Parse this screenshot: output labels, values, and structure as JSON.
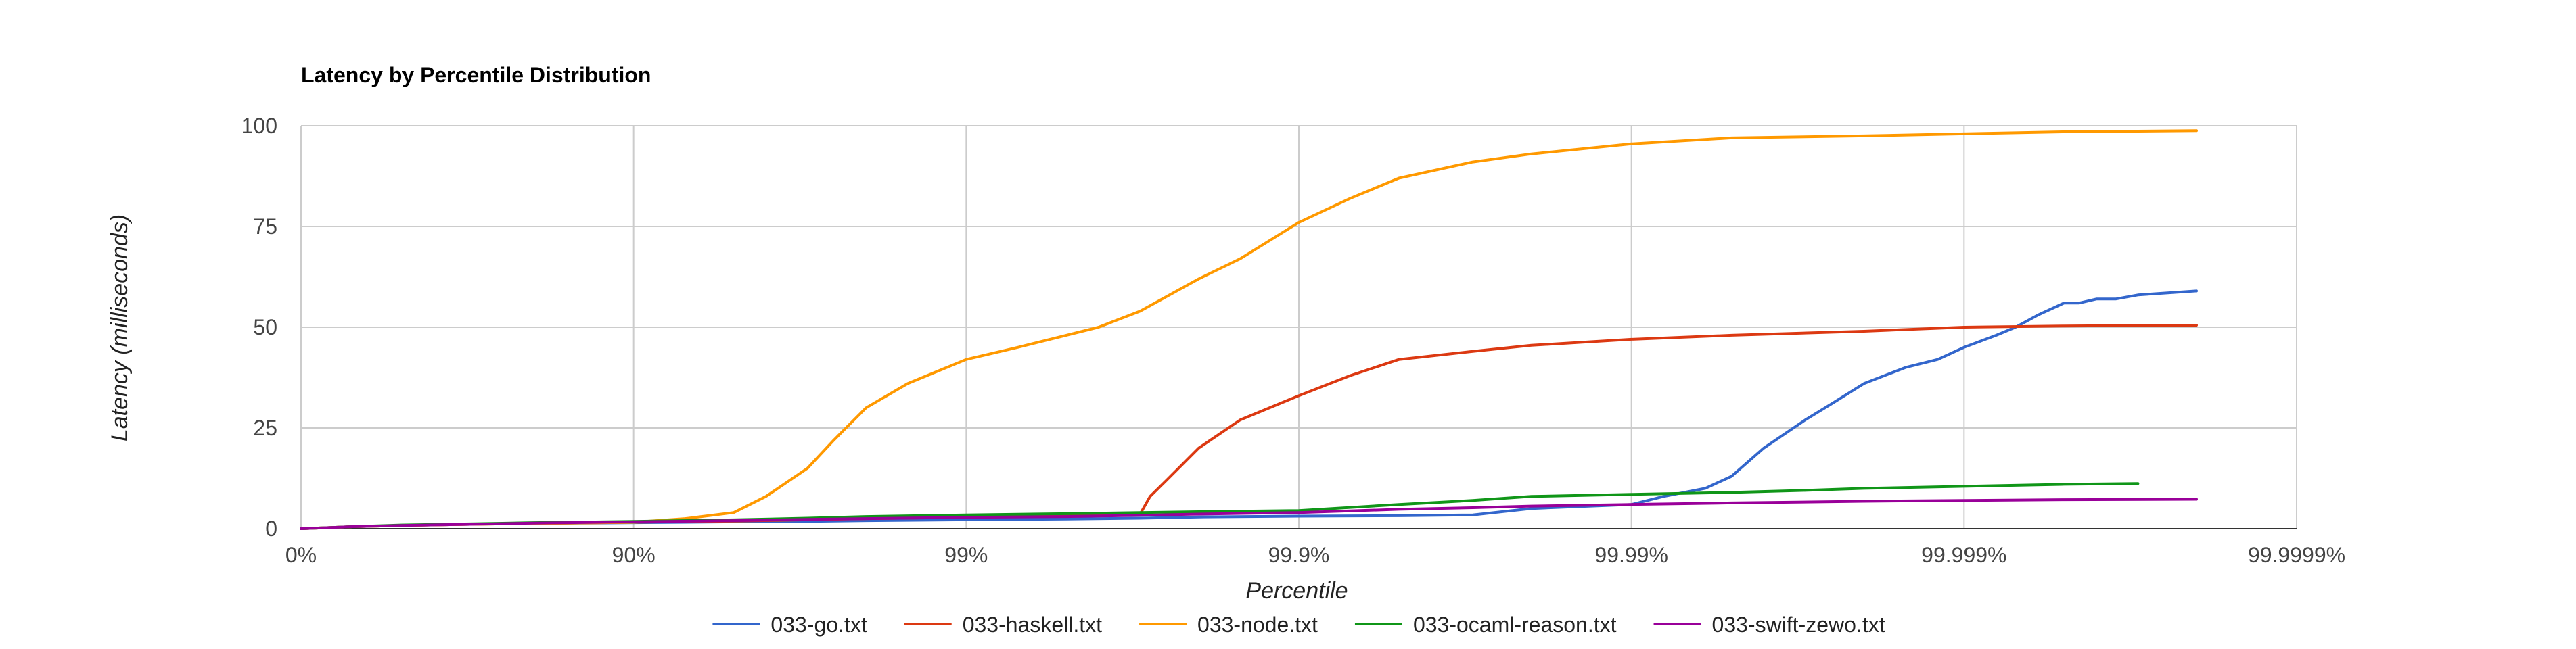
{
  "chart_data": {
    "type": "line",
    "title": "Latency by Percentile Distribution",
    "xlabel": "Percentile",
    "ylabel": "Latency (milliseconds)",
    "x_scale": "log-percentile",
    "x_ticks": [
      "0%",
      "90%",
      "99%",
      "99.9%",
      "99.99%",
      "99.999%",
      "99.9999%"
    ],
    "y_ticks": [
      "0",
      "25",
      "50",
      "75",
      "100"
    ],
    "ylim": [
      0,
      100
    ],
    "grid": true,
    "legend_position": "bottom",
    "series": [
      {
        "name": "033-go.txt",
        "color": "#3366cc",
        "x": [
          0,
          30,
          50,
          70,
          80,
          90,
          95,
          97,
          98,
          99,
          99.5,
          99.7,
          99.8,
          99.9,
          99.95,
          99.97,
          99.98,
          99.99,
          99.992,
          99.994,
          99.995,
          99.996,
          99.997,
          99.9975,
          99.998,
          99.9985,
          99.9988,
          99.999,
          99.9992,
          99.9993,
          99.9994,
          99.9995,
          99.99955,
          99.9996,
          99.99965,
          99.9997,
          99.9998
        ],
        "y": [
          0,
          0.5,
          0.8,
          1.1,
          1.3,
          1.5,
          1.7,
          1.8,
          2,
          2.2,
          2.4,
          2.6,
          2.9,
          3.1,
          3.2,
          3.4,
          5,
          6,
          8,
          10,
          13,
          20,
          27,
          31,
          36,
          40,
          42,
          45,
          48,
          50,
          53,
          56,
          56,
          57,
          57,
          58,
          59
        ]
      },
      {
        "name": "033-haskell.txt",
        "color": "#dc3912",
        "x": [
          0,
          30,
          50,
          70,
          80,
          90,
          95,
          97,
          98,
          99,
          99.5,
          99.7,
          99.72,
          99.75,
          99.8,
          99.85,
          99.9,
          99.93,
          99.95,
          99.97,
          99.98,
          99.99,
          99.995,
          99.998,
          99.999,
          99.9995,
          99.9998
        ],
        "y": [
          0,
          0.5,
          0.8,
          1.1,
          1.3,
          1.6,
          1.9,
          2.2,
          2.5,
          2.8,
          3.2,
          3.6,
          8,
          12,
          20,
          27,
          33,
          38,
          42,
          44,
          45.5,
          47,
          48,
          49,
          50,
          50.3,
          50.5
        ]
      },
      {
        "name": "033-node.txt",
        "color": "#ff9900",
        "x": [
          0,
          30,
          50,
          70,
          80,
          90,
          93,
          95,
          96,
          97,
          97.5,
          98,
          98.5,
          99,
          99.3,
          99.5,
          99.6,
          99.7,
          99.8,
          99.85,
          99.9,
          99.93,
          99.95,
          99.97,
          99.98,
          99.99,
          99.995,
          99.998,
          99.999,
          99.9995,
          99.9998
        ],
        "y": [
          0,
          0.5,
          0.8,
          1.1,
          1.3,
          1.6,
          2.5,
          4,
          8,
          15,
          22,
          30,
          36,
          42,
          45,
          48,
          50,
          54,
          62,
          67,
          76,
          82,
          87,
          91,
          93,
          95.5,
          97,
          97.5,
          98,
          98.5,
          98.8
        ]
      },
      {
        "name": "033-ocaml-reason.txt",
        "color": "#109618",
        "x": [
          0,
          30,
          50,
          70,
          80,
          90,
          95,
          97,
          98,
          99,
          99.5,
          99.7,
          99.8,
          99.9,
          99.95,
          99.97,
          99.98,
          99.99,
          99.995,
          99.997,
          99.998,
          99.999,
          99.9995,
          99.9997
        ],
        "y": [
          0,
          0.5,
          0.9,
          1.2,
          1.5,
          1.8,
          2.2,
          2.6,
          3,
          3.4,
          3.7,
          4,
          4.2,
          4.5,
          6,
          7,
          8,
          8.5,
          9,
          9.5,
          10,
          10.5,
          11,
          11.2
        ]
      },
      {
        "name": "033-swift-zewo.txt",
        "color": "#990099",
        "x": [
          0,
          30,
          50,
          70,
          80,
          90,
          95,
          97,
          98,
          99,
          99.5,
          99.7,
          99.8,
          99.9,
          99.95,
          99.97,
          99.98,
          99.99,
          99.995,
          99.998,
          99.999,
          99.9995,
          99.9998
        ],
        "y": [
          0,
          0.5,
          0.8,
          1.1,
          1.4,
          1.7,
          2,
          2.3,
          2.5,
          2.8,
          3,
          3.3,
          3.6,
          4,
          4.8,
          5.2,
          5.6,
          6,
          6.4,
          6.8,
          7,
          7.2,
          7.3
        ]
      }
    ]
  }
}
